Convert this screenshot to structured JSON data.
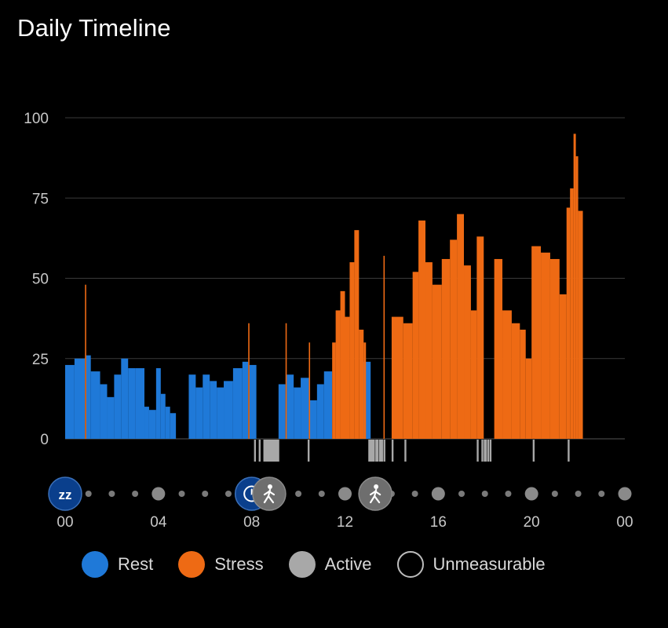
{
  "title": "Daily Timeline",
  "colors": {
    "rest": "#1f79d8",
    "stress": "#ee6a14",
    "active": "#a8a8a8",
    "unmeasurable": "#000000",
    "grid": "#3a3a3a",
    "axis": "#555555",
    "marker_blue": "#0a3f8c",
    "marker_gray": "#6e6e6e",
    "dot": "#7a7a7a"
  },
  "legend": [
    {
      "key": "rest",
      "label": "Rest",
      "color": "#1f79d8",
      "outline": false
    },
    {
      "key": "stress",
      "label": "Stress",
      "color": "#ee6a14",
      "outline": false
    },
    {
      "key": "active",
      "label": "Active",
      "color": "#a8a8a8",
      "outline": false
    },
    {
      "key": "unmeasurable",
      "label": "Unmeasurable",
      "color": "#000000",
      "outline": true
    }
  ],
  "timeline_markers": [
    {
      "hour": 0.0,
      "icon": "sleep-icon",
      "text": "zz",
      "style": "blue"
    },
    {
      "hour": 8.0,
      "icon": "clock-icon",
      "text": "",
      "style": "blue"
    },
    {
      "hour": 8.75,
      "icon": "walking-icon",
      "text": "",
      "style": "gray"
    },
    {
      "hour": 13.3,
      "icon": "walking-icon",
      "text": "",
      "style": "gray"
    }
  ],
  "chart_data": {
    "type": "bar",
    "title": "Daily Timeline",
    "x_unit": "hour",
    "xlim": [
      0,
      24
    ],
    "ylim": [
      0,
      100
    ],
    "yticks": [
      0,
      25,
      50,
      75,
      100
    ],
    "xticks": [
      "00",
      "04",
      "08",
      "12",
      "16",
      "20",
      "00"
    ],
    "grid": true,
    "legend_position": "bottom",
    "stress_segments": [
      {
        "hour_start": 0.85,
        "hour_end": 0.9,
        "value": 48
      },
      {
        "hour_start": 7.85,
        "hour_end": 7.9,
        "value": 36
      },
      {
        "hour_start": 9.45,
        "hour_end": 9.5,
        "value": 36
      },
      {
        "hour_start": 10.45,
        "hour_end": 10.5,
        "value": 30
      },
      {
        "hour_start": 11.45,
        "hour_end": 11.6,
        "value": 30
      },
      {
        "hour_start": 11.6,
        "hour_end": 11.8,
        "value": 40
      },
      {
        "hour_start": 11.8,
        "hour_end": 12.0,
        "value": 46
      },
      {
        "hour_start": 12.0,
        "hour_end": 12.2,
        "value": 38
      },
      {
        "hour_start": 12.2,
        "hour_end": 12.4,
        "value": 55
      },
      {
        "hour_start": 12.4,
        "hour_end": 12.6,
        "value": 65
      },
      {
        "hour_start": 12.6,
        "hour_end": 12.8,
        "value": 34
      },
      {
        "hour_start": 12.8,
        "hour_end": 12.9,
        "value": 30
      },
      {
        "hour_start": 13.65,
        "hour_end": 13.7,
        "value": 57
      },
      {
        "hour_start": 14.0,
        "hour_end": 14.5,
        "value": 38
      },
      {
        "hour_start": 14.5,
        "hour_end": 14.9,
        "value": 36
      },
      {
        "hour_start": 14.9,
        "hour_end": 15.15,
        "value": 52
      },
      {
        "hour_start": 15.15,
        "hour_end": 15.45,
        "value": 68
      },
      {
        "hour_start": 15.45,
        "hour_end": 15.75,
        "value": 55
      },
      {
        "hour_start": 15.75,
        "hour_end": 16.15,
        "value": 48
      },
      {
        "hour_start": 16.15,
        "hour_end": 16.5,
        "value": 56
      },
      {
        "hour_start": 16.5,
        "hour_end": 16.8,
        "value": 62
      },
      {
        "hour_start": 16.8,
        "hour_end": 17.1,
        "value": 70
      },
      {
        "hour_start": 17.1,
        "hour_end": 17.4,
        "value": 54
      },
      {
        "hour_start": 17.4,
        "hour_end": 17.65,
        "value": 40
      },
      {
        "hour_start": 17.65,
        "hour_end": 17.95,
        "value": 63
      },
      {
        "hour_start": 18.4,
        "hour_end": 18.75,
        "value": 56
      },
      {
        "hour_start": 18.75,
        "hour_end": 19.15,
        "value": 40
      },
      {
        "hour_start": 19.15,
        "hour_end": 19.5,
        "value": 36
      },
      {
        "hour_start": 19.5,
        "hour_end": 19.75,
        "value": 34
      },
      {
        "hour_start": 19.75,
        "hour_end": 20.0,
        "value": 25
      },
      {
        "hour_start": 20.0,
        "hour_end": 20.4,
        "value": 60
      },
      {
        "hour_start": 20.4,
        "hour_end": 20.8,
        "value": 58
      },
      {
        "hour_start": 20.8,
        "hour_end": 21.2,
        "value": 56
      },
      {
        "hour_start": 21.2,
        "hour_end": 21.5,
        "value": 45
      },
      {
        "hour_start": 21.5,
        "hour_end": 21.65,
        "value": 72
      },
      {
        "hour_start": 21.65,
        "hour_end": 21.8,
        "value": 78
      },
      {
        "hour_start": 21.8,
        "hour_end": 21.9,
        "value": 95
      },
      {
        "hour_start": 21.9,
        "hour_end": 22.0,
        "value": 88
      },
      {
        "hour_start": 22.0,
        "hour_end": 22.2,
        "value": 71
      }
    ],
    "rest_segments": [
      {
        "hour_start": 0.0,
        "hour_end": 0.4,
        "value": 23
      },
      {
        "hour_start": 0.4,
        "hour_end": 0.85,
        "value": 25
      },
      {
        "hour_start": 0.9,
        "hour_end": 1.1,
        "value": 26
      },
      {
        "hour_start": 1.1,
        "hour_end": 1.5,
        "value": 21
      },
      {
        "hour_start": 1.5,
        "hour_end": 1.8,
        "value": 17
      },
      {
        "hour_start": 1.8,
        "hour_end": 2.1,
        "value": 13
      },
      {
        "hour_start": 2.1,
        "hour_end": 2.4,
        "value": 20
      },
      {
        "hour_start": 2.4,
        "hour_end": 2.7,
        "value": 25
      },
      {
        "hour_start": 2.7,
        "hour_end": 3.0,
        "value": 22
      },
      {
        "hour_start": 3.0,
        "hour_end": 3.4,
        "value": 22
      },
      {
        "hour_start": 3.4,
        "hour_end": 3.6,
        "value": 10
      },
      {
        "hour_start": 3.6,
        "hour_end": 3.9,
        "value": 9
      },
      {
        "hour_start": 3.9,
        "hour_end": 4.1,
        "value": 22
      },
      {
        "hour_start": 4.1,
        "hour_end": 4.3,
        "value": 14
      },
      {
        "hour_start": 4.3,
        "hour_end": 4.5,
        "value": 10
      },
      {
        "hour_start": 4.5,
        "hour_end": 4.75,
        "value": 8
      },
      {
        "hour_start": 5.3,
        "hour_end": 5.6,
        "value": 20
      },
      {
        "hour_start": 5.6,
        "hour_end": 5.9,
        "value": 16
      },
      {
        "hour_start": 5.9,
        "hour_end": 6.2,
        "value": 20
      },
      {
        "hour_start": 6.2,
        "hour_end": 6.5,
        "value": 18
      },
      {
        "hour_start": 6.5,
        "hour_end": 6.8,
        "value": 16
      },
      {
        "hour_start": 6.8,
        "hour_end": 7.2,
        "value": 18
      },
      {
        "hour_start": 7.2,
        "hour_end": 7.6,
        "value": 22
      },
      {
        "hour_start": 7.6,
        "hour_end": 7.85,
        "value": 24
      },
      {
        "hour_start": 7.9,
        "hour_end": 8.2,
        "value": 23
      },
      {
        "hour_start": 9.15,
        "hour_end": 9.45,
        "value": 17
      },
      {
        "hour_start": 9.5,
        "hour_end": 9.8,
        "value": 20
      },
      {
        "hour_start": 9.8,
        "hour_end": 10.1,
        "value": 16
      },
      {
        "hour_start": 10.1,
        "hour_end": 10.45,
        "value": 19
      },
      {
        "hour_start": 10.5,
        "hour_end": 10.8,
        "value": 12
      },
      {
        "hour_start": 10.8,
        "hour_end": 11.1,
        "value": 17
      },
      {
        "hour_start": 11.1,
        "hour_end": 11.45,
        "value": 21
      },
      {
        "hour_start": 12.7,
        "hour_end": 13.1,
        "value": 24
      },
      {
        "hour_start": 18.45,
        "hour_end": 18.6,
        "value": 23
      },
      {
        "hour_start": 19.55,
        "hour_end": 19.7,
        "value": 24
      }
    ],
    "active_ticks_hours": [
      8.1,
      8.3,
      8.5,
      8.55,
      8.6,
      8.65,
      8.7,
      8.75,
      8.8,
      8.85,
      8.9,
      8.95,
      9.0,
      9.05,
      9.1,
      10.4,
      13.0,
      13.05,
      13.1,
      13.15,
      13.2,
      13.3,
      13.35,
      13.45,
      13.5,
      13.55,
      13.65,
      14.0,
      14.55,
      17.65,
      17.85,
      17.95,
      18.0,
      18.1,
      18.2,
      20.05,
      21.55
    ]
  }
}
